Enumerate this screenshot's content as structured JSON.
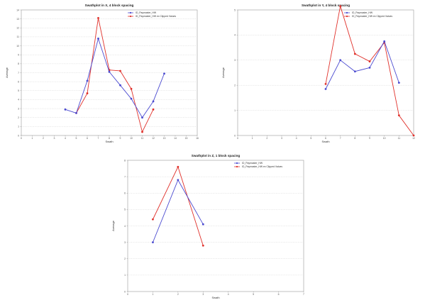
{
  "chart_data": [
    {
      "type": "line",
      "title": "Swathplot in X, 4 block spacing",
      "xlabel": "Swath",
      "ylabel": "Average",
      "xlim": [
        0,
        16
      ],
      "ylim": [
        0,
        14
      ],
      "x_ticks": [
        "0",
        "1",
        "2",
        "3",
        "4",
        "5",
        "6",
        "7",
        "8",
        "9",
        "10",
        "11",
        "12",
        "13",
        "14",
        "15",
        "16"
      ],
      "y_ticks": [
        "0",
        "1",
        "2",
        "3",
        "4",
        "5",
        "6",
        "7",
        "8",
        "9",
        "10",
        "11",
        "12",
        "13",
        "14"
      ],
      "grid": "horizontal-dotted",
      "legend_position": "top-right",
      "series": [
        {
          "name": "ID_Paymaster_HW",
          "color": "#4a4ad0",
          "x": [
            4,
            5,
            6,
            7,
            8,
            9,
            10,
            11,
            12,
            13
          ],
          "y": [
            2.9,
            2.5,
            6.1,
            10.8,
            7.1,
            5.6,
            4.1,
            2.0,
            3.8,
            6.9
          ]
        },
        {
          "name": "ID_Paymaster_HW ex Clipped Values",
          "color": "#e0302a",
          "x": [
            5,
            6,
            7,
            8,
            9,
            10,
            11,
            12
          ],
          "y": [
            2.5,
            4.7,
            13.1,
            7.3,
            7.2,
            5.2,
            0.4,
            2.9
          ]
        }
      ]
    },
    {
      "type": "line",
      "title": "Swathplot in Y, 4 block spacing",
      "xlabel": "Swath",
      "ylabel": "Average",
      "xlim": [
        0,
        12
      ],
      "ylim": [
        0,
        5
      ],
      "x_ticks": [
        "0",
        "1",
        "2",
        "3",
        "4",
        "5",
        "6",
        "7",
        "8",
        "9",
        "10",
        "11",
        "12"
      ],
      "y_ticks": [
        "0",
        "1",
        "2",
        "3",
        "4",
        "5"
      ],
      "grid": "horizontal-dotted",
      "legend_position": "top-right",
      "series": [
        {
          "name": "ID_Paymaster_HW",
          "color": "#4a4ad0",
          "x": [
            6,
            7,
            8,
            9,
            10,
            11
          ],
          "y": [
            1.85,
            3.0,
            2.55,
            2.7,
            3.75,
            2.1
          ]
        },
        {
          "name": "ID_Paymaster_HW ex Clipped Values",
          "color": "#e0302a",
          "x": [
            6,
            7,
            8,
            9,
            10,
            11,
            12
          ],
          "y": [
            2.05,
            5.15,
            3.25,
            2.95,
            3.7,
            0.8,
            0.0
          ]
        }
      ]
    },
    {
      "type": "line",
      "title": "Swathplot in Z, 1 block spacing",
      "xlabel": "Swath",
      "ylabel": "Average",
      "xlim": [
        0,
        7
      ],
      "ylim": [
        0,
        8
      ],
      "x_ticks": [
        "0",
        "1",
        "2",
        "3",
        "4",
        "5",
        "6",
        "7"
      ],
      "y_ticks": [
        "0",
        "1",
        "2",
        "3",
        "4",
        "5",
        "6",
        "7",
        "8"
      ],
      "grid": "horizontal-dotted",
      "legend_position": "top-right",
      "series": [
        {
          "name": "ID_Paymaster_HW",
          "color": "#4a4ad0",
          "x": [
            1,
            2,
            3
          ],
          "y": [
            3.0,
            6.8,
            4.1
          ]
        },
        {
          "name": "ID_Paymaster_HW ex Clipped Values",
          "color": "#e0302a",
          "x": [
            1,
            2,
            3
          ],
          "y": [
            4.4,
            7.6,
            2.8
          ]
        }
      ]
    }
  ]
}
